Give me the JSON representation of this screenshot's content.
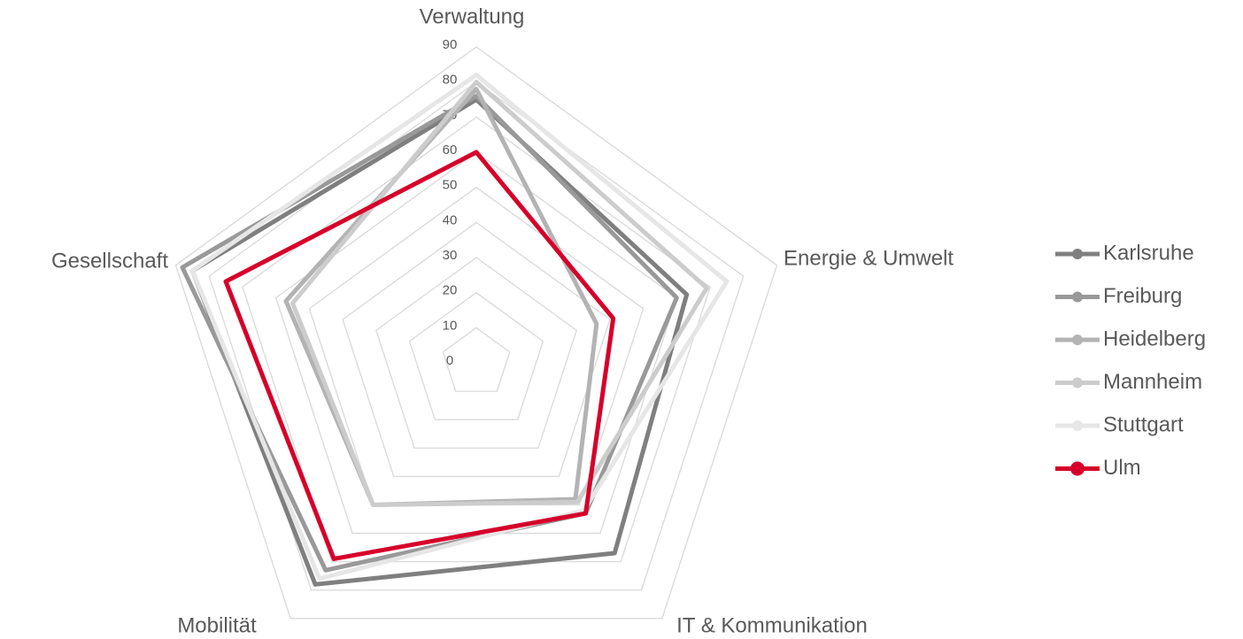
{
  "chart_data": {
    "type": "radar",
    "categories": [
      "Verwaltung",
      "Energie & Umwelt",
      "IT & Kommunikation",
      "Mobilität",
      "Gesellschaft"
    ],
    "rlim": [
      0,
      90
    ],
    "rticks": [
      0,
      10,
      20,
      30,
      40,
      50,
      60,
      70,
      80,
      90
    ],
    "grid": true,
    "legend": "right",
    "series": [
      {
        "name": "Karlsruhe",
        "color": "#7f7f7f",
        "values": [
          75,
          63,
          67,
          78,
          85
        ]
      },
      {
        "name": "Freiburg",
        "color": "#999999",
        "values": [
          76,
          60,
          53,
          73,
          88
        ]
      },
      {
        "name": "Heidelberg",
        "color": "#b3b3b3",
        "values": [
          78,
          36,
          48,
          50,
          57
        ]
      },
      {
        "name": "Mannheim",
        "color": "#cccccc",
        "values": [
          80,
          69,
          49,
          50,
          55
        ]
      },
      {
        "name": "Stuttgart",
        "color": "#e6e6e6",
        "values": [
          82,
          75,
          52,
          76,
          85
        ]
      },
      {
        "name": "Ulm",
        "color": "#d6002a",
        "values": [
          60,
          41,
          53,
          69,
          75
        ]
      }
    ]
  }
}
